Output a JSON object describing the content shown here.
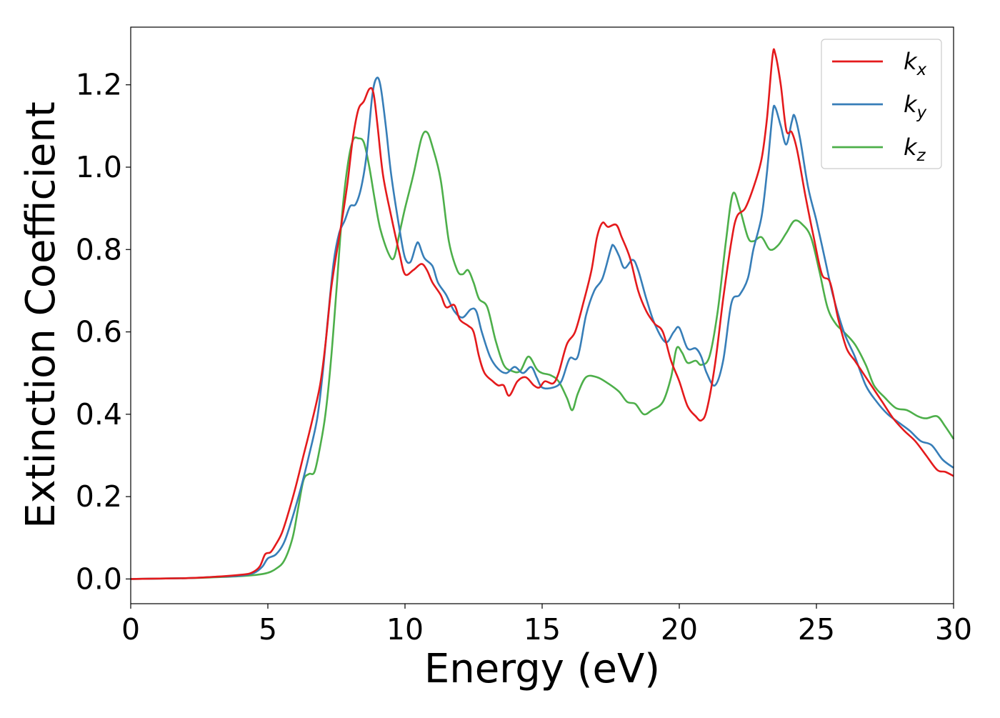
{
  "chart_data": {
    "type": "line",
    "title": "",
    "xlabel": "Energy (eV)",
    "ylabel": "Extinction Coefficient",
    "xlim": [
      0,
      30
    ],
    "ylim": [
      -0.06,
      1.34
    ],
    "xticks": [
      0,
      5,
      10,
      15,
      20,
      25,
      30
    ],
    "xtick_labels": [
      "0",
      "5",
      "10",
      "15",
      "20",
      "25",
      "30"
    ],
    "yticks": [
      0.0,
      0.2,
      0.4,
      0.6,
      0.8,
      1.0,
      1.2
    ],
    "ytick_labels": [
      "0.0",
      "0.2",
      "0.4",
      "0.6",
      "0.8",
      "1.0",
      "1.2"
    ],
    "grid": false,
    "legend_position": "top-right",
    "series": [
      {
        "name": "k_x",
        "label_base": "k",
        "label_sub": "x",
        "color": "#e41a1c",
        "points": [
          [
            0,
            0.0
          ],
          [
            2,
            0.002
          ],
          [
            3,
            0.005
          ],
          [
            4,
            0.01
          ],
          [
            4.4,
            0.015
          ],
          [
            4.7,
            0.03
          ],
          [
            4.9,
            0.06
          ],
          [
            5.1,
            0.065
          ],
          [
            5.3,
            0.085
          ],
          [
            5.5,
            0.11
          ],
          [
            5.7,
            0.15
          ],
          [
            6,
            0.22
          ],
          [
            6.3,
            0.3
          ],
          [
            6.6,
            0.38
          ],
          [
            6.9,
            0.47
          ],
          [
            7.1,
            0.57
          ],
          [
            7.3,
            0.7
          ],
          [
            7.5,
            0.79
          ],
          [
            7.7,
            0.87
          ],
          [
            7.9,
            0.96
          ],
          [
            8.1,
            1.07
          ],
          [
            8.3,
            1.14
          ],
          [
            8.5,
            1.16
          ],
          [
            8.7,
            1.19
          ],
          [
            8.85,
            1.18
          ],
          [
            9.0,
            1.1
          ],
          [
            9.2,
            0.98
          ],
          [
            9.5,
            0.88
          ],
          [
            9.8,
            0.79
          ],
          [
            10.0,
            0.74
          ],
          [
            10.3,
            0.75
          ],
          [
            10.6,
            0.765
          ],
          [
            10.8,
            0.75
          ],
          [
            11.0,
            0.72
          ],
          [
            11.3,
            0.69
          ],
          [
            11.5,
            0.66
          ],
          [
            11.8,
            0.665
          ],
          [
            12.0,
            0.63
          ],
          [
            12.3,
            0.615
          ],
          [
            12.5,
            0.6
          ],
          [
            12.7,
            0.54
          ],
          [
            12.9,
            0.5
          ],
          [
            13.2,
            0.48
          ],
          [
            13.4,
            0.47
          ],
          [
            13.6,
            0.47
          ],
          [
            13.8,
            0.445
          ],
          [
            14.1,
            0.48
          ],
          [
            14.4,
            0.49
          ],
          [
            14.7,
            0.47
          ],
          [
            14.9,
            0.465
          ],
          [
            15.1,
            0.48
          ],
          [
            15.4,
            0.475
          ],
          [
            15.6,
            0.5
          ],
          [
            15.9,
            0.57
          ],
          [
            16.2,
            0.6
          ],
          [
            16.5,
            0.67
          ],
          [
            16.8,
            0.75
          ],
          [
            17.0,
            0.83
          ],
          [
            17.2,
            0.865
          ],
          [
            17.4,
            0.855
          ],
          [
            17.7,
            0.86
          ],
          [
            17.9,
            0.83
          ],
          [
            18.2,
            0.78
          ],
          [
            18.5,
            0.7
          ],
          [
            18.8,
            0.65
          ],
          [
            19.1,
            0.62
          ],
          [
            19.4,
            0.6
          ],
          [
            19.7,
            0.53
          ],
          [
            20.0,
            0.48
          ],
          [
            20.3,
            0.42
          ],
          [
            20.6,
            0.395
          ],
          [
            20.8,
            0.385
          ],
          [
            21.0,
            0.41
          ],
          [
            21.3,
            0.52
          ],
          [
            21.6,
            0.68
          ],
          [
            21.9,
            0.82
          ],
          [
            22.1,
            0.88
          ],
          [
            22.4,
            0.9
          ],
          [
            22.7,
            0.95
          ],
          [
            23.0,
            1.02
          ],
          [
            23.2,
            1.12
          ],
          [
            23.4,
            1.27
          ],
          [
            23.5,
            1.275
          ],
          [
            23.7,
            1.2
          ],
          [
            23.9,
            1.09
          ],
          [
            24.1,
            1.085
          ],
          [
            24.3,
            1.04
          ],
          [
            24.6,
            0.93
          ],
          [
            24.9,
            0.83
          ],
          [
            25.2,
            0.74
          ],
          [
            25.5,
            0.72
          ],
          [
            25.8,
            0.63
          ],
          [
            26.1,
            0.56
          ],
          [
            26.4,
            0.53
          ],
          [
            26.7,
            0.5
          ],
          [
            27.0,
            0.47
          ],
          [
            27.4,
            0.43
          ],
          [
            27.8,
            0.39
          ],
          [
            28.2,
            0.36
          ],
          [
            28.6,
            0.335
          ],
          [
            29.0,
            0.3
          ],
          [
            29.4,
            0.265
          ],
          [
            29.7,
            0.26
          ],
          [
            30.0,
            0.25
          ]
        ]
      },
      {
        "name": "k_y",
        "label_base": "k",
        "label_sub": "y",
        "color": "#377eb8",
        "points": [
          [
            0,
            0.0
          ],
          [
            2,
            0.002
          ],
          [
            3,
            0.005
          ],
          [
            4,
            0.008
          ],
          [
            4.5,
            0.015
          ],
          [
            4.8,
            0.03
          ],
          [
            5.0,
            0.05
          ],
          [
            5.3,
            0.06
          ],
          [
            5.6,
            0.09
          ],
          [
            5.9,
            0.15
          ],
          [
            6.2,
            0.22
          ],
          [
            6.5,
            0.3
          ],
          [
            6.8,
            0.39
          ],
          [
            7.0,
            0.5
          ],
          [
            7.2,
            0.64
          ],
          [
            7.4,
            0.77
          ],
          [
            7.6,
            0.84
          ],
          [
            7.8,
            0.87
          ],
          [
            8.0,
            0.905
          ],
          [
            8.2,
            0.91
          ],
          [
            8.4,
            0.95
          ],
          [
            8.6,
            1.03
          ],
          [
            8.8,
            1.17
          ],
          [
            8.95,
            1.215
          ],
          [
            9.1,
            1.2
          ],
          [
            9.3,
            1.1
          ],
          [
            9.5,
            0.98
          ],
          [
            9.8,
            0.85
          ],
          [
            10.0,
            0.78
          ],
          [
            10.2,
            0.77
          ],
          [
            10.4,
            0.81
          ],
          [
            10.5,
            0.815
          ],
          [
            10.7,
            0.78
          ],
          [
            11.0,
            0.76
          ],
          [
            11.2,
            0.72
          ],
          [
            11.5,
            0.69
          ],
          [
            11.8,
            0.65
          ],
          [
            12.1,
            0.635
          ],
          [
            12.4,
            0.655
          ],
          [
            12.6,
            0.65
          ],
          [
            12.8,
            0.6
          ],
          [
            13.1,
            0.54
          ],
          [
            13.4,
            0.51
          ],
          [
            13.7,
            0.5
          ],
          [
            14.0,
            0.515
          ],
          [
            14.3,
            0.5
          ],
          [
            14.6,
            0.515
          ],
          [
            14.8,
            0.49
          ],
          [
            15.0,
            0.465
          ],
          [
            15.4,
            0.465
          ],
          [
            15.7,
            0.48
          ],
          [
            16.0,
            0.535
          ],
          [
            16.3,
            0.54
          ],
          [
            16.6,
            0.64
          ],
          [
            16.9,
            0.7
          ],
          [
            17.2,
            0.73
          ],
          [
            17.5,
            0.8
          ],
          [
            17.6,
            0.81
          ],
          [
            17.8,
            0.785
          ],
          [
            18.0,
            0.755
          ],
          [
            18.3,
            0.775
          ],
          [
            18.5,
            0.75
          ],
          [
            18.8,
            0.68
          ],
          [
            19.1,
            0.62
          ],
          [
            19.5,
            0.575
          ],
          [
            19.8,
            0.6
          ],
          [
            20.0,
            0.61
          ],
          [
            20.3,
            0.56
          ],
          [
            20.6,
            0.56
          ],
          [
            20.8,
            0.54
          ],
          [
            21.0,
            0.5
          ],
          [
            21.3,
            0.47
          ],
          [
            21.6,
            0.53
          ],
          [
            21.9,
            0.67
          ],
          [
            22.2,
            0.69
          ],
          [
            22.5,
            0.73
          ],
          [
            22.7,
            0.8
          ],
          [
            23.0,
            0.88
          ],
          [
            23.2,
            0.99
          ],
          [
            23.4,
            1.13
          ],
          [
            23.5,
            1.145
          ],
          [
            23.7,
            1.1
          ],
          [
            23.9,
            1.055
          ],
          [
            24.1,
            1.11
          ],
          [
            24.2,
            1.125
          ],
          [
            24.4,
            1.07
          ],
          [
            24.7,
            0.95
          ],
          [
            25.0,
            0.87
          ],
          [
            25.3,
            0.78
          ],
          [
            25.6,
            0.69
          ],
          [
            26.0,
            0.6
          ],
          [
            26.4,
            0.54
          ],
          [
            26.8,
            0.47
          ],
          [
            27.2,
            0.43
          ],
          [
            27.6,
            0.4
          ],
          [
            28.0,
            0.38
          ],
          [
            28.4,
            0.36
          ],
          [
            28.8,
            0.335
          ],
          [
            29.2,
            0.325
          ],
          [
            29.6,
            0.29
          ],
          [
            30.0,
            0.27
          ]
        ]
      },
      {
        "name": "k_z",
        "label_base": "k",
        "label_sub": "z",
        "color": "#4daf4a",
        "points": [
          [
            0,
            0.0
          ],
          [
            2,
            0.002
          ],
          [
            3,
            0.004
          ],
          [
            4,
            0.007
          ],
          [
            4.6,
            0.01
          ],
          [
            5.0,
            0.015
          ],
          [
            5.3,
            0.025
          ],
          [
            5.6,
            0.045
          ],
          [
            5.9,
            0.1
          ],
          [
            6.1,
            0.17
          ],
          [
            6.3,
            0.24
          ],
          [
            6.5,
            0.255
          ],
          [
            6.7,
            0.26
          ],
          [
            6.9,
            0.32
          ],
          [
            7.1,
            0.4
          ],
          [
            7.3,
            0.53
          ],
          [
            7.5,
            0.7
          ],
          [
            7.7,
            0.88
          ],
          [
            7.9,
            1.0
          ],
          [
            8.1,
            1.065
          ],
          [
            8.3,
            1.07
          ],
          [
            8.5,
            1.06
          ],
          [
            8.7,
            1.0
          ],
          [
            8.9,
            0.92
          ],
          [
            9.1,
            0.85
          ],
          [
            9.4,
            0.79
          ],
          [
            9.6,
            0.78
          ],
          [
            9.8,
            0.84
          ],
          [
            10.0,
            0.9
          ],
          [
            10.3,
            0.98
          ],
          [
            10.6,
            1.07
          ],
          [
            10.8,
            1.085
          ],
          [
            11.0,
            1.05
          ],
          [
            11.3,
            0.97
          ],
          [
            11.6,
            0.82
          ],
          [
            11.9,
            0.75
          ],
          [
            12.1,
            0.74
          ],
          [
            12.3,
            0.75
          ],
          [
            12.5,
            0.72
          ],
          [
            12.7,
            0.68
          ],
          [
            13.0,
            0.66
          ],
          [
            13.3,
            0.58
          ],
          [
            13.6,
            0.52
          ],
          [
            13.9,
            0.505
          ],
          [
            14.2,
            0.505
          ],
          [
            14.5,
            0.54
          ],
          [
            14.8,
            0.51
          ],
          [
            15.0,
            0.5
          ],
          [
            15.3,
            0.495
          ],
          [
            15.6,
            0.48
          ],
          [
            15.9,
            0.44
          ],
          [
            16.1,
            0.41
          ],
          [
            16.3,
            0.45
          ],
          [
            16.6,
            0.49
          ],
          [
            17.0,
            0.49
          ],
          [
            17.4,
            0.475
          ],
          [
            17.8,
            0.455
          ],
          [
            18.1,
            0.43
          ],
          [
            18.4,
            0.425
          ],
          [
            18.7,
            0.4
          ],
          [
            19.0,
            0.41
          ],
          [
            19.4,
            0.43
          ],
          [
            19.7,
            0.49
          ],
          [
            19.9,
            0.56
          ],
          [
            20.1,
            0.55
          ],
          [
            20.3,
            0.525
          ],
          [
            20.6,
            0.53
          ],
          [
            20.8,
            0.52
          ],
          [
            21.1,
            0.54
          ],
          [
            21.4,
            0.65
          ],
          [
            21.7,
            0.82
          ],
          [
            21.95,
            0.935
          ],
          [
            22.2,
            0.9
          ],
          [
            22.5,
            0.83
          ],
          [
            22.7,
            0.82
          ],
          [
            23.0,
            0.83
          ],
          [
            23.3,
            0.8
          ],
          [
            23.6,
            0.81
          ],
          [
            23.9,
            0.84
          ],
          [
            24.2,
            0.87
          ],
          [
            24.5,
            0.86
          ],
          [
            24.8,
            0.83
          ],
          [
            25.1,
            0.75
          ],
          [
            25.4,
            0.66
          ],
          [
            25.7,
            0.62
          ],
          [
            26.0,
            0.6
          ],
          [
            26.4,
            0.57
          ],
          [
            26.8,
            0.52
          ],
          [
            27.1,
            0.47
          ],
          [
            27.5,
            0.44
          ],
          [
            27.9,
            0.415
          ],
          [
            28.3,
            0.41
          ],
          [
            28.7,
            0.395
          ],
          [
            29.0,
            0.39
          ],
          [
            29.4,
            0.395
          ],
          [
            29.7,
            0.37
          ],
          [
            30.0,
            0.34
          ]
        ]
      }
    ]
  }
}
